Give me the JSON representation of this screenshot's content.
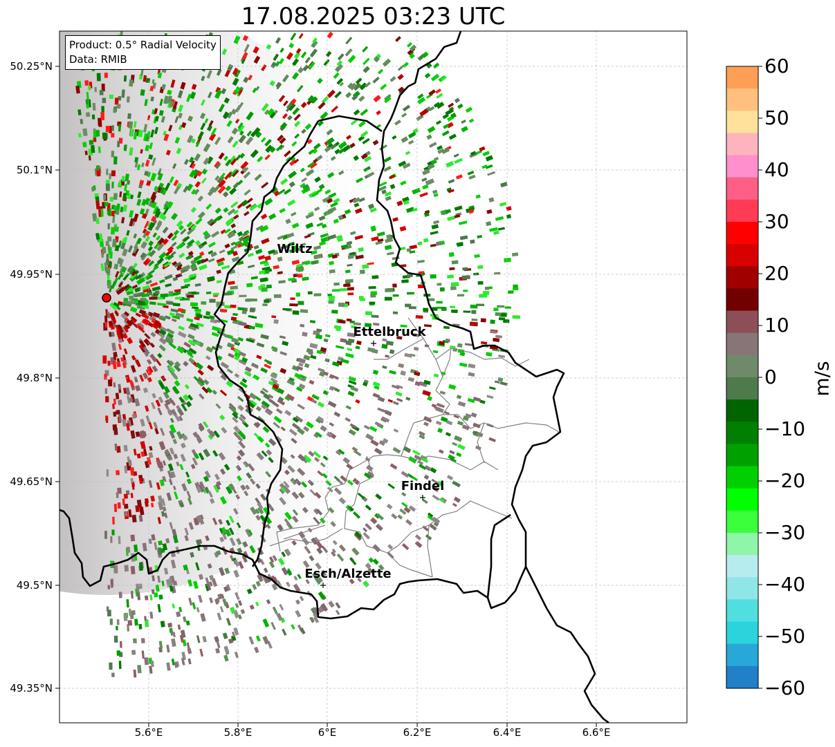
{
  "title": "17.08.2025 03:23 UTC",
  "info_box": {
    "product": "Product: 0.5° Radial Velocity",
    "data_source": "Data: RMIB"
  },
  "lat_ticks": [
    "50.25°N",
    "50.1°N",
    "49.95°N",
    "49.8°N",
    "49.65°N",
    "49.5°N",
    "49.35°N"
  ],
  "lon_ticks": [
    "5.6°E",
    "5.8°E",
    "6°E",
    "6.2°E",
    "6.4°E",
    "6.6°E"
  ],
  "cities": [
    {
      "name": "Wiltz",
      "lon": 5.93,
      "lat": 50.0
    },
    {
      "name": "Ettelbruck",
      "lon": 6.1,
      "lat": 49.85
    },
    {
      "name": "Findel",
      "lon": 6.21,
      "lat": 49.627
    },
    {
      "name": "Esch/Alzette",
      "lon": 5.99,
      "lat": 49.5
    }
  ],
  "radar_site": {
    "lon": 5.505,
    "lat": 49.914
  },
  "colorbar": {
    "label": "m/s",
    "ticks": [
      "60",
      "50",
      "40",
      "30",
      "20",
      "10",
      "0",
      "−10",
      "−20",
      "−30",
      "−40",
      "−50",
      "−60"
    ],
    "min": -60,
    "max": 60,
    "colors_top_to_bottom": [
      "#ff9f55",
      "#ffc07f",
      "#ffe19b",
      "#ffb4bd",
      "#ff8fcd",
      "#ff5e86",
      "#ff3b55",
      "#ff0000",
      "#d80000",
      "#a00000",
      "#720000",
      "#8c4f57",
      "#877578",
      "#6f8a68",
      "#4f7a4c",
      "#006400",
      "#008000",
      "#00a000",
      "#00d000",
      "#00ff00",
      "#3cff3c",
      "#8ff5a8",
      "#b7ecef",
      "#8ee6e6",
      "#50dede",
      "#2bd3dc",
      "#27a8d8",
      "#2080c8"
    ]
  },
  "colors": {
    "border_national": "#000000",
    "border_cantonal": "#808080",
    "gridline": "#bbbbbb",
    "radar_marker": "#ff0000"
  }
}
